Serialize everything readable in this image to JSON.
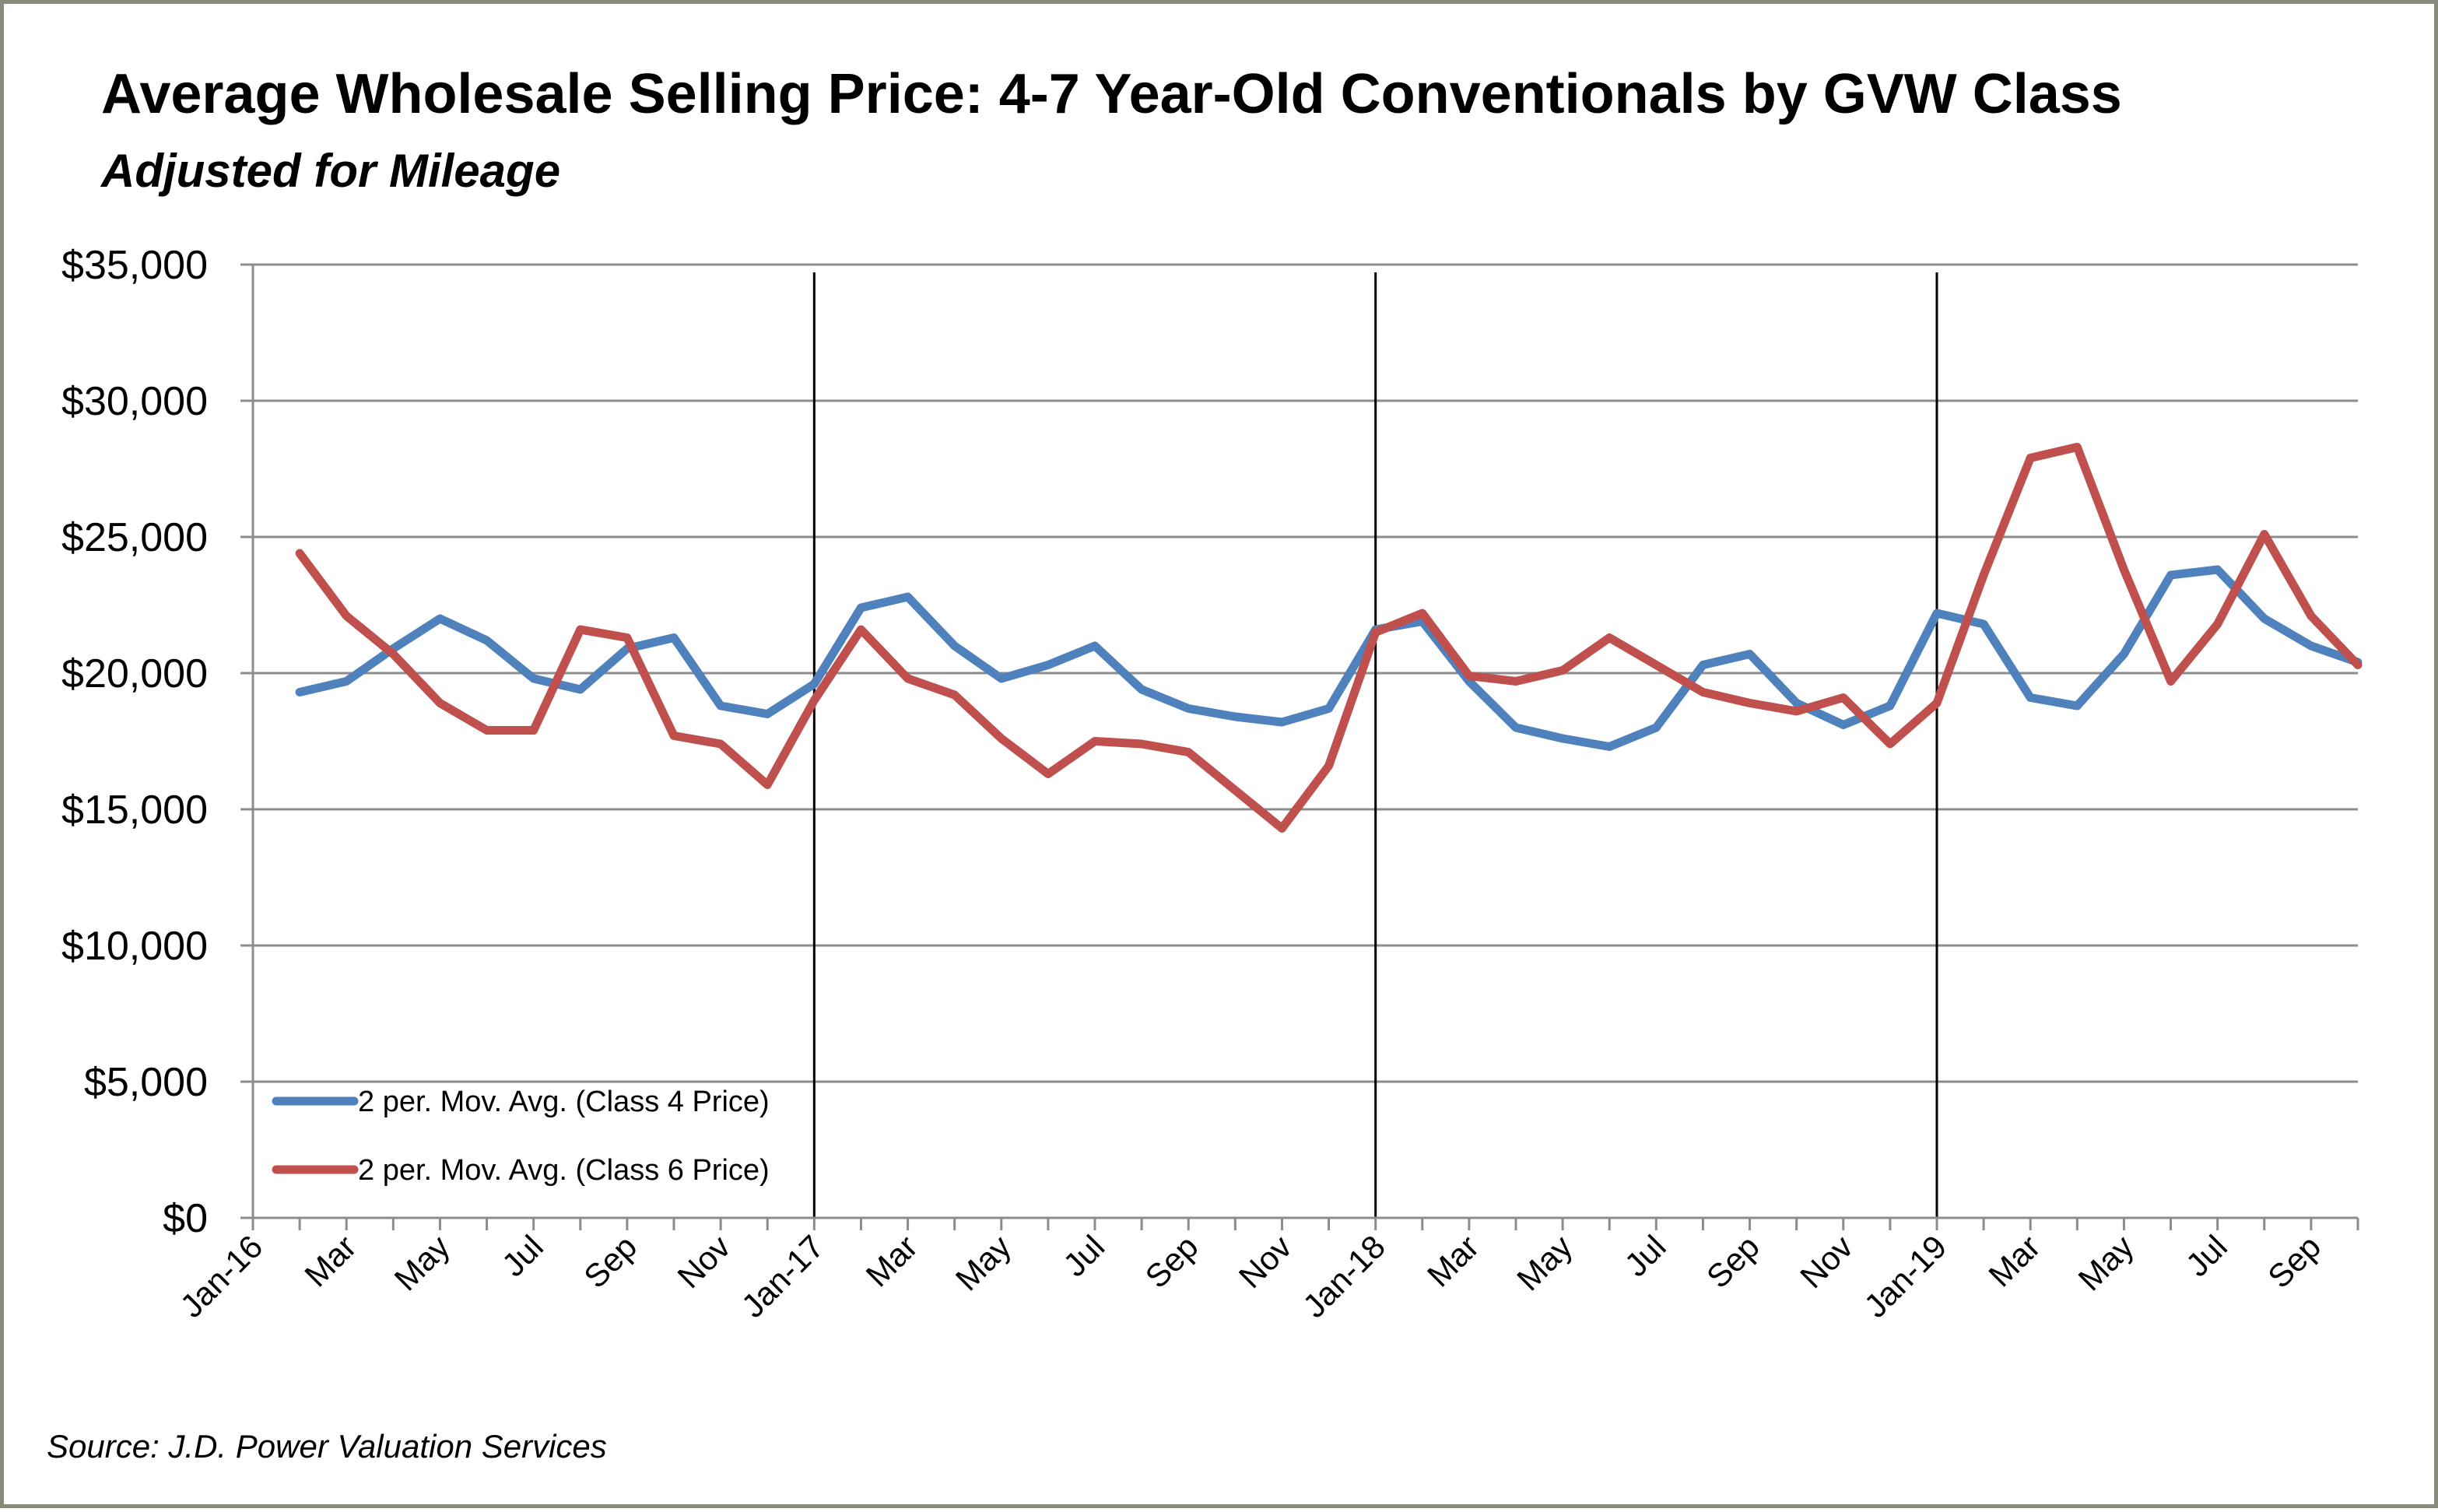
{
  "chart_data": {
    "type": "line",
    "title": "Average Wholesale Selling Price: 4-7 Year-Old Conventionals by GVW Class",
    "subtitle": "Adjusted for Mileage",
    "source": "Source: J.D. Power Valuation Services",
    "ylim": [
      0,
      35000
    ],
    "y_ticks": [
      "$0",
      "$5,000",
      "$10,000",
      "$15,000",
      "$20,000",
      "$25,000",
      "$30,000",
      "$35,000"
    ],
    "y_tick_values": [
      0,
      5000,
      10000,
      15000,
      20000,
      25000,
      30000,
      35000
    ],
    "grid": true,
    "x_months": [
      "Jan-16",
      "Feb-16",
      "Mar-16",
      "Apr-16",
      "May-16",
      "Jun-16",
      "Jul-16",
      "Aug-16",
      "Sep-16",
      "Oct-16",
      "Nov-16",
      "Dec-16",
      "Jan-17",
      "Feb-17",
      "Mar-17",
      "Apr-17",
      "May-17",
      "Jun-17",
      "Jul-17",
      "Aug-17",
      "Sep-17",
      "Oct-17",
      "Nov-17",
      "Dec-17",
      "Jan-18",
      "Feb-18",
      "Mar-18",
      "Apr-18",
      "May-18",
      "Jun-18",
      "Jul-18",
      "Aug-18",
      "Sep-18",
      "Oct-18",
      "Nov-18",
      "Dec-18",
      "Jan-19",
      "Feb-19",
      "Mar-19",
      "Apr-19",
      "May-19",
      "Jun-19",
      "Jul-19",
      "Aug-19",
      "Sep-19",
      "Oct-19"
    ],
    "x_tick_labels": [
      "Jan-16",
      "Mar",
      "May",
      "Jul",
      "Sep",
      "Nov",
      "Jan-17",
      "Mar",
      "May",
      "Jul",
      "Sep",
      "Nov",
      "Jan-18",
      "Mar",
      "May",
      "Jul",
      "Sep",
      "Nov",
      "Jan-19",
      "Mar",
      "May",
      "Jul",
      "Sep"
    ],
    "year_markers": [
      "Jan-17",
      "Jan-18",
      "Jan-19"
    ],
    "legend_position": "bottom-left",
    "series": [
      {
        "name": "2 per. Mov. Avg. (Class 4 Price)",
        "color": "#4f81bd",
        "x": [
          "Feb-16",
          "Mar-16",
          "Apr-16",
          "May-16",
          "Jun-16",
          "Jul-16",
          "Aug-16",
          "Sep-16",
          "Oct-16",
          "Nov-16",
          "Dec-16",
          "Jan-17",
          "Feb-17",
          "Mar-17",
          "Apr-17",
          "May-17",
          "Jun-17",
          "Jul-17",
          "Aug-17",
          "Sep-17",
          "Oct-17",
          "Nov-17",
          "Dec-17",
          "Jan-18",
          "Feb-18",
          "Mar-18",
          "Apr-18",
          "May-18",
          "Jun-18",
          "Jul-18",
          "Aug-18",
          "Sep-18",
          "Oct-18",
          "Nov-18",
          "Dec-18",
          "Jan-19",
          "Feb-19",
          "Mar-19",
          "Apr-19",
          "May-19",
          "Jun-19",
          "Jul-19",
          "Aug-19",
          "Sep-19",
          "Oct-19"
        ],
        "values": [
          19300,
          19700,
          20900,
          22000,
          21200,
          19800,
          19400,
          20900,
          21300,
          18800,
          18500,
          19600,
          22400,
          22800,
          21000,
          19800,
          20300,
          21000,
          19400,
          18700,
          18400,
          18200,
          18700,
          21600,
          21900,
          19700,
          18000,
          17600,
          17300,
          18000,
          20300,
          20700,
          18900,
          18100,
          18800,
          22200,
          21800,
          19100,
          18800,
          20700,
          23600,
          23800,
          22000,
          21000,
          20400
        ]
      },
      {
        "name": "2 per. Mov. Avg. (Class 6 Price)",
        "color": "#c0504d",
        "x": [
          "Feb-16",
          "Mar-16",
          "Apr-16",
          "May-16",
          "Jun-16",
          "Jul-16",
          "Aug-16",
          "Sep-16",
          "Oct-16",
          "Nov-16",
          "Dec-16",
          "Jan-17",
          "Feb-17",
          "Mar-17",
          "Apr-17",
          "May-17",
          "Jun-17",
          "Jul-17",
          "Aug-17",
          "Sep-17",
          "Oct-17",
          "Nov-17",
          "Dec-17",
          "Jan-18",
          "Feb-18",
          "Mar-18",
          "Apr-18",
          "May-18",
          "Jun-18",
          "Jul-18",
          "Aug-18",
          "Sep-18",
          "Oct-18",
          "Nov-18",
          "Dec-18",
          "Jan-19",
          "Feb-19",
          "Mar-19",
          "Apr-19",
          "May-19",
          "Jun-19",
          "Jul-19",
          "Aug-19",
          "Sep-19",
          "Oct-19"
        ],
        "values": [
          24400,
          22100,
          20700,
          18900,
          17900,
          17900,
          21600,
          21300,
          17700,
          17400,
          15900,
          19000,
          21600,
          19800,
          19200,
          17600,
          16300,
          17500,
          17400,
          17100,
          15700,
          14300,
          16600,
          21500,
          22200,
          19900,
          19700,
          20100,
          21300,
          20300,
          19300,
          18900,
          18600,
          19100,
          17400,
          18900,
          23600,
          27900,
          28300,
          23800,
          19700,
          21800,
          25100,
          22100,
          20300
        ]
      }
    ]
  }
}
